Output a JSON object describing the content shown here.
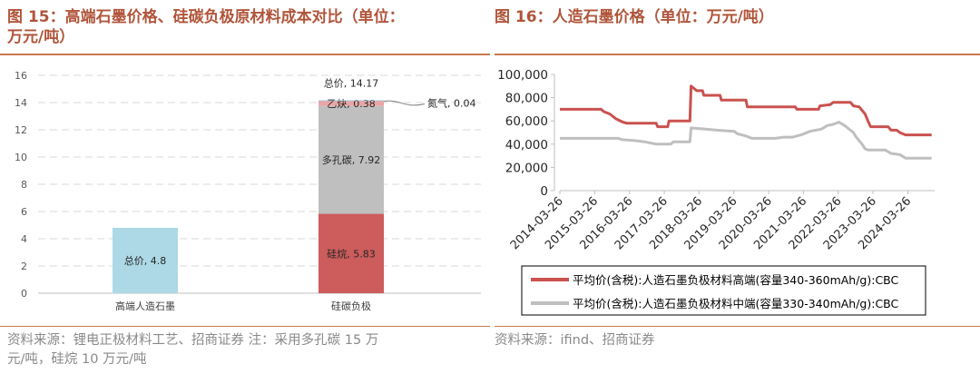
{
  "left": {
    "title_line1": "图 15：高端石墨价格、硅碳负极原材料成本对比（单位：",
    "title_line2": "万元/吨）",
    "source_line1": "资料来源：锂电正极材料工艺、招商证券 注：采用多孔碳 15 万",
    "source_line2": "元/吨，硅烷 10 万元/吨"
  },
  "right": {
    "title": "图 16：人造石墨价格（单位：万元/吨）",
    "source": "资料来源：ifind、招商证券"
  },
  "chart_data": [
    {
      "type": "bar",
      "subtype": "stacked",
      "categories": [
        "高端人造石墨",
        "硅碳负极"
      ],
      "ylim": [
        0,
        16
      ],
      "yticks": [
        0,
        2,
        4,
        6,
        8,
        10,
        12,
        14,
        16
      ],
      "grid": true,
      "colors": {
        "graphite": "#add8e6",
        "silane": "#cd5c5c",
        "porous_carbon": "#bfbfbf",
        "acetylene": "#e8a6a6",
        "nitrogen": "#9ec7df"
      },
      "segments": [
        {
          "key": "graphite",
          "category": 0,
          "value": 4.8,
          "label": "总价, 4.8"
        },
        {
          "key": "silane",
          "category": 1,
          "value": 5.83,
          "label": "硅烷, 5.83"
        },
        {
          "key": "porous_carbon",
          "category": 1,
          "value": 7.92,
          "label": "多孔碳, 7.92"
        },
        {
          "key": "acetylene",
          "category": 1,
          "value": 0.38,
          "label": "乙炔, 0.38"
        },
        {
          "key": "nitrogen",
          "category": 1,
          "value": 0.04,
          "label": "氮气, 0.04"
        }
      ],
      "total_label": "总价, 14.17"
    },
    {
      "type": "line",
      "ylim": [
        0,
        100000
      ],
      "yticks": [
        "0",
        "20,000",
        "40,000",
        "60,000",
        "80,000",
        "100,000"
      ],
      "ytick_values": [
        0,
        20000,
        40000,
        60000,
        80000,
        100000
      ],
      "xlim": [
        "2014-03-26",
        "2025-01-01"
      ],
      "xticks": [
        "2014-03-26",
        "2015-03-26",
        "2016-03-26",
        "2017-03-26",
        "2018-03-26",
        "2019-03-26",
        "2020-03-26",
        "2021-03-26",
        "2022-03-26",
        "2023-03-26",
        "2024-03-26"
      ],
      "grid": false,
      "legend_position": "bottom",
      "series": [
        {
          "name": "平均价(含税):人造石墨负极材料高端(容量340-360mAh/g):CBC",
          "color": "#c9524f",
          "points": [
            [
              "2014-03-26",
              70000
            ],
            [
              "2015-06-01",
              70000
            ],
            [
              "2015-07-01",
              68000
            ],
            [
              "2015-09-01",
              66000
            ],
            [
              "2015-11-01",
              62000
            ],
            [
              "2016-01-15",
              59000
            ],
            [
              "2016-03-01",
              58000
            ],
            [
              "2017-01-01",
              58000
            ],
            [
              "2017-01-15",
              55000
            ],
            [
              "2017-05-01",
              55000
            ],
            [
              "2017-05-15",
              60000
            ],
            [
              "2017-12-20",
              60000
            ],
            [
              "2018-01-01",
              90000
            ],
            [
              "2018-03-01",
              86000
            ],
            [
              "2018-05-01",
              86000
            ],
            [
              "2018-05-15",
              82000
            ],
            [
              "2018-11-01",
              82000
            ],
            [
              "2018-11-15",
              78000
            ],
            [
              "2019-08-01",
              78000
            ],
            [
              "2019-08-15",
              72000
            ],
            [
              "2021-01-01",
              72000
            ],
            [
              "2021-01-15",
              70000
            ],
            [
              "2021-09-01",
              70000
            ],
            [
              "2021-09-15",
              73000
            ],
            [
              "2022-01-01",
              74000
            ],
            [
              "2022-02-01",
              76000
            ],
            [
              "2022-08-01",
              76000
            ],
            [
              "2022-09-01",
              73000
            ],
            [
              "2022-11-01",
              72000
            ],
            [
              "2023-01-01",
              66000
            ],
            [
              "2023-02-01",
              60000
            ],
            [
              "2023-03-01",
              55000
            ],
            [
              "2023-09-01",
              55000
            ],
            [
              "2023-10-01",
              52000
            ],
            [
              "2023-12-01",
              52000
            ],
            [
              "2024-01-01",
              50000
            ],
            [
              "2024-03-01",
              48000
            ],
            [
              "2024-12-01",
              48000
            ]
          ]
        },
        {
          "name": "平均价(含税):人造石墨负极材料中端(容量330-340mAh/g):CBC",
          "color": "#bfbfbf",
          "points": [
            [
              "2014-03-26",
              45000
            ],
            [
              "2015-12-01",
              45000
            ],
            [
              "2016-01-01",
              44000
            ],
            [
              "2016-06-01",
              43000
            ],
            [
              "2016-09-01",
              42000
            ],
            [
              "2017-01-01",
              40000
            ],
            [
              "2017-06-01",
              40000
            ],
            [
              "2017-07-01",
              42000
            ],
            [
              "2017-12-20",
              42000
            ],
            [
              "2018-01-01",
              54000
            ],
            [
              "2018-06-01",
              53000
            ],
            [
              "2018-10-01",
              52000
            ],
            [
              "2019-04-01",
              51000
            ],
            [
              "2019-05-01",
              49000
            ],
            [
              "2019-08-01",
              47000
            ],
            [
              "2019-10-01",
              45000
            ],
            [
              "2020-06-01",
              45000
            ],
            [
              "2020-09-01",
              46000
            ],
            [
              "2020-12-01",
              46000
            ],
            [
              "2021-03-01",
              48000
            ],
            [
              "2021-06-01",
              51000
            ],
            [
              "2021-10-01",
              53000
            ],
            [
              "2021-12-01",
              56000
            ],
            [
              "2022-02-01",
              57000
            ],
            [
              "2022-04-01",
              59000
            ],
            [
              "2022-06-01",
              56000
            ],
            [
              "2022-09-01",
              50000
            ],
            [
              "2022-10-01",
              46000
            ],
            [
              "2022-12-01",
              40000
            ],
            [
              "2023-01-01",
              36000
            ],
            [
              "2023-02-01",
              35000
            ],
            [
              "2023-08-01",
              35000
            ],
            [
              "2023-10-01",
              32000
            ],
            [
              "2024-01-01",
              31000
            ],
            [
              "2024-03-01",
              28000
            ],
            [
              "2024-12-01",
              28000
            ]
          ]
        }
      ]
    }
  ]
}
